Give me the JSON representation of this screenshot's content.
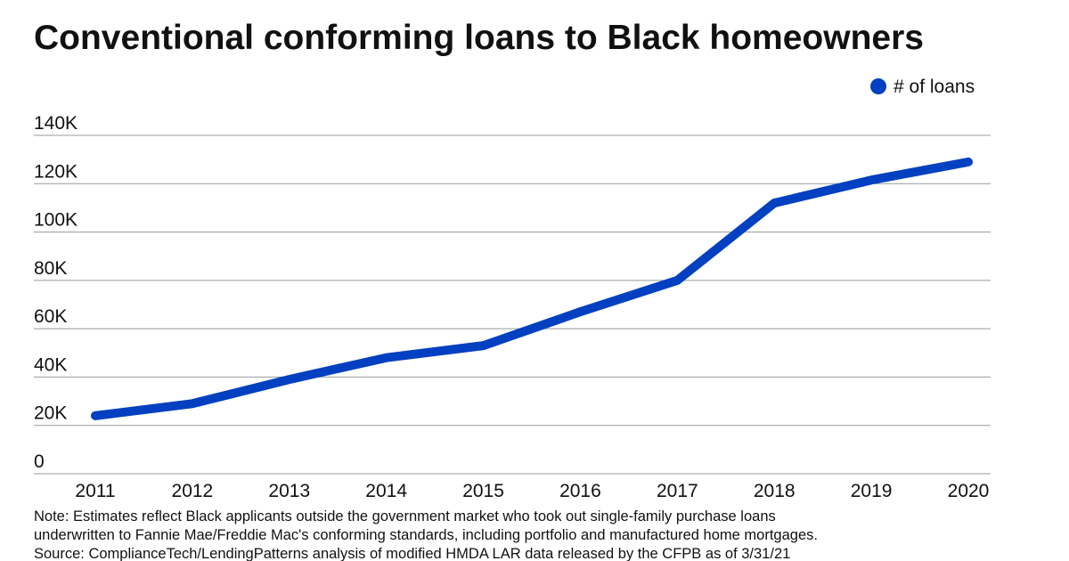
{
  "chart_data": {
    "type": "line",
    "title": "Conventional conforming loans to Black homeowners",
    "categories": [
      "2011",
      "2012",
      "2013",
      "2014",
      "2015",
      "2016",
      "2017",
      "2018",
      "2019",
      "2020"
    ],
    "series": [
      {
        "name": "# of loans",
        "color": "#0040c1",
        "values": [
          24000,
          29000,
          39000,
          48000,
          53000,
          67000,
          80000,
          112000,
          121500,
          129000
        ]
      }
    ],
    "ylim": [
      0,
      140000
    ],
    "yticks": [
      0,
      {
        "value": 20000,
        "label": "20K"
      },
      {
        "value": 40000,
        "label": "40K"
      },
      {
        "value": 60000,
        "label": "60K"
      },
      {
        "value": 80000,
        "label": "80K"
      },
      {
        "value": 100000,
        "label": "100K"
      },
      {
        "value": 120000,
        "label": "120K"
      },
      {
        "value": 140000,
        "label": "140K"
      }
    ],
    "grid": true,
    "legend": "top-right",
    "note": [
      "Note: Estimates reflect Black applicants outside the government market who took out single-family purchase loans",
      "underwritten to Fannie Mae/Freddie Mac's conforming standards, including portfolio and manufactured home mortgages."
    ],
    "source": "Source: ComplianceTech/LendingPatterns analysis of modified HMDA LAR data released by the CFPB as of 3/31/21"
  }
}
